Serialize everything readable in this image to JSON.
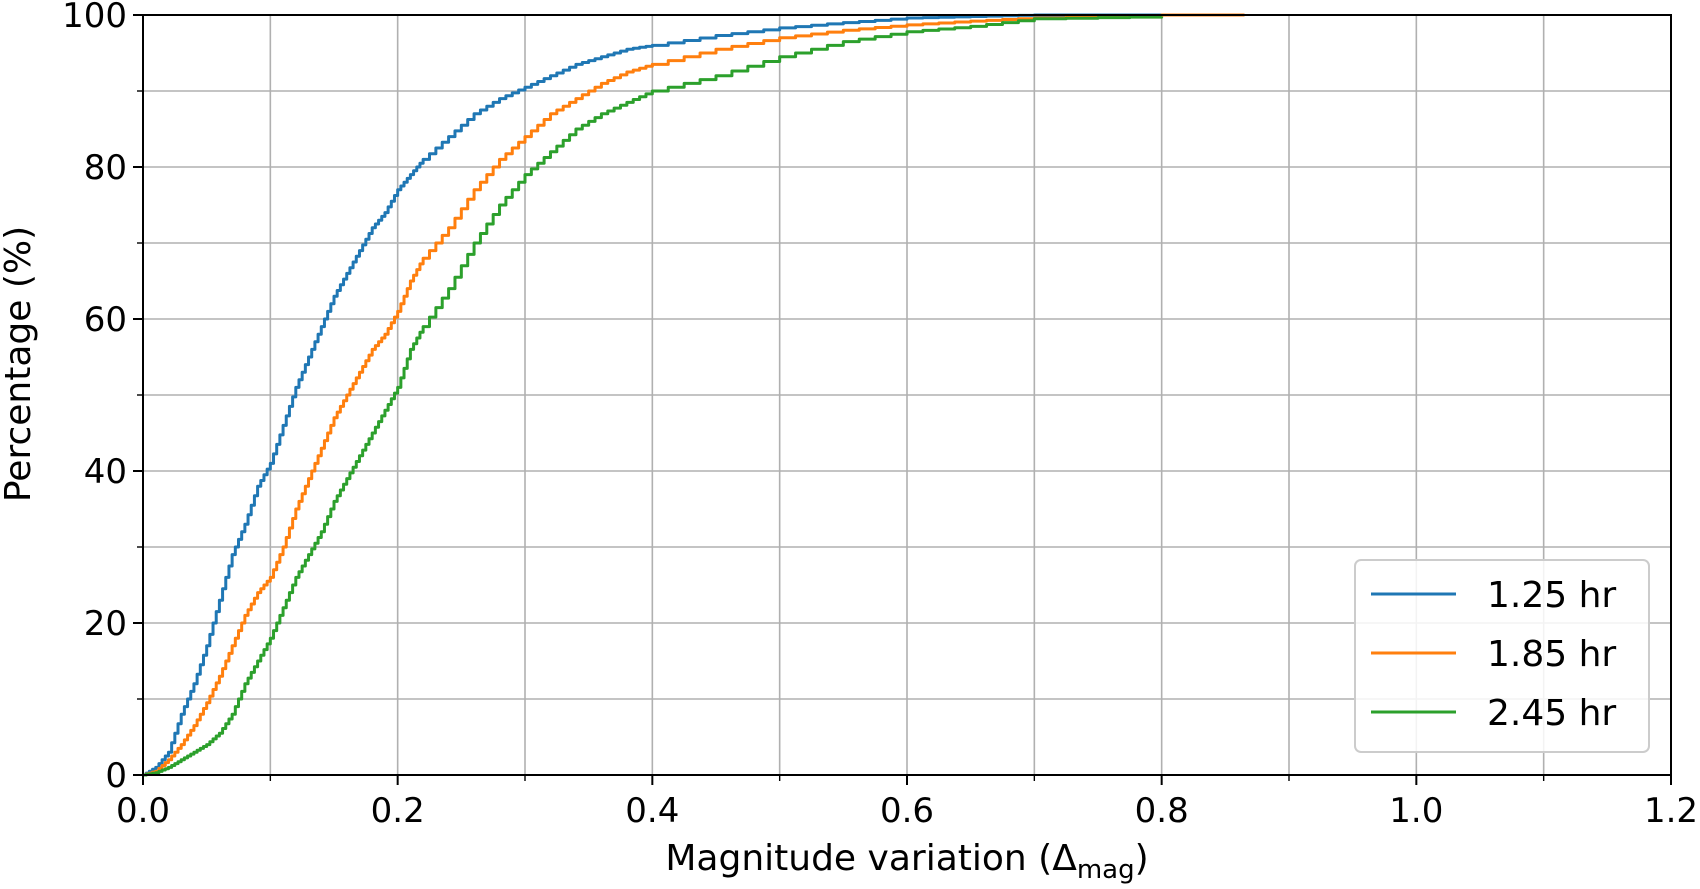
{
  "chart_data": {
    "type": "line",
    "title": "",
    "xlabel_main": "Magnitude variation (Δ",
    "xlabel_sub": "mag",
    "xlabel_end": ")",
    "ylabel": "Percentage (%)",
    "xlim": [
      0.0,
      1.2
    ],
    "ylim": [
      0,
      100
    ],
    "x_ticks": [
      "0.0",
      "0.2",
      "0.4",
      "0.6",
      "0.8",
      "1.0",
      "1.2"
    ],
    "y_ticks": [
      "0",
      "20",
      "40",
      "60",
      "80",
      "100"
    ],
    "grid": true,
    "legend_position": "bottom-right",
    "series": [
      {
        "name": "1.25 hr",
        "color": "#1f77b4",
        "x": [
          0.0,
          0.01,
          0.02,
          0.03,
          0.04,
          0.05,
          0.06,
          0.07,
          0.08,
          0.09,
          0.1,
          0.11,
          0.12,
          0.13,
          0.14,
          0.15,
          0.16,
          0.17,
          0.18,
          0.19,
          0.2,
          0.21,
          0.22,
          0.24,
          0.26,
          0.28,
          0.3,
          0.32,
          0.34,
          0.36,
          0.38,
          0.4,
          0.45,
          0.5,
          0.55,
          0.6,
          0.65,
          0.7,
          0.8,
          0.865
        ],
        "y": [
          0,
          1,
          3,
          8,
          12,
          17,
          23,
          29,
          33,
          38,
          41,
          46,
          51,
          55,
          59,
          63,
          66,
          69,
          72,
          74,
          77,
          79,
          81,
          84,
          87,
          89,
          90.5,
          92,
          93.5,
          94.5,
          95.5,
          96,
          97.3,
          98.3,
          99,
          99.6,
          99.8,
          100,
          100,
          100
        ]
      },
      {
        "name": "1.85 hr",
        "color": "#ff7f0e",
        "x": [
          0.0,
          0.01,
          0.02,
          0.03,
          0.04,
          0.05,
          0.06,
          0.07,
          0.08,
          0.09,
          0.1,
          0.11,
          0.12,
          0.13,
          0.14,
          0.15,
          0.16,
          0.17,
          0.18,
          0.19,
          0.2,
          0.21,
          0.22,
          0.24,
          0.26,
          0.28,
          0.3,
          0.32,
          0.34,
          0.36,
          0.38,
          0.4,
          0.45,
          0.5,
          0.55,
          0.6,
          0.65,
          0.7,
          0.8,
          0.865
        ],
        "y": [
          0,
          0.5,
          2,
          4,
          6.5,
          9.5,
          13,
          17,
          21,
          24,
          26,
          30,
          35,
          39,
          43,
          47,
          50,
          53,
          56,
          58,
          61,
          65,
          68,
          72,
          77,
          81,
          84,
          87,
          89,
          91,
          92.5,
          93.5,
          95.5,
          97,
          98,
          98.7,
          99.2,
          99.6,
          100,
          100
        ]
      },
      {
        "name": "2.45 hr",
        "color": "#2ca02c",
        "x": [
          0.0,
          0.01,
          0.02,
          0.03,
          0.04,
          0.05,
          0.06,
          0.07,
          0.08,
          0.09,
          0.1,
          0.11,
          0.12,
          0.13,
          0.14,
          0.15,
          0.16,
          0.17,
          0.18,
          0.19,
          0.2,
          0.21,
          0.22,
          0.24,
          0.26,
          0.28,
          0.3,
          0.32,
          0.34,
          0.36,
          0.38,
          0.4,
          0.45,
          0.5,
          0.55,
          0.6,
          0.65,
          0.7,
          0.8
        ],
        "y": [
          0,
          0.3,
          1,
          2,
          3,
          4,
          5.5,
          8,
          12,
          15,
          18,
          22,
          26,
          29,
          32,
          36,
          39,
          42,
          45,
          48,
          51,
          56,
          59,
          64,
          70,
          75,
          79,
          82,
          85,
          87,
          88.5,
          90,
          92,
          94.5,
          96.5,
          97.8,
          98.5,
          99.5,
          99.8
        ]
      }
    ]
  }
}
